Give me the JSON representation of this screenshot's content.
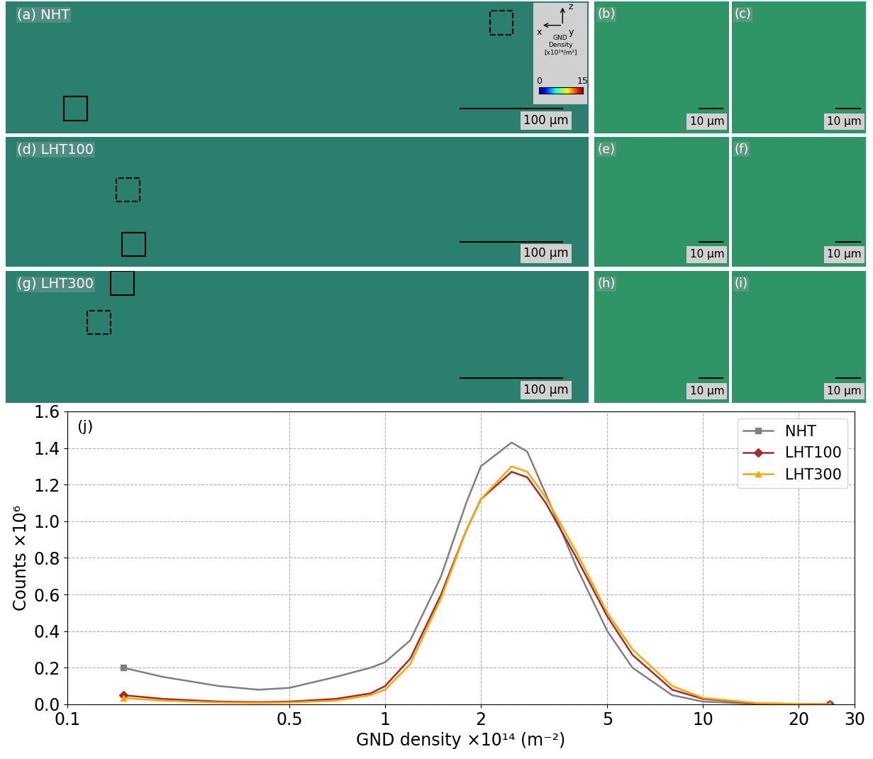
{
  "maps": [
    {
      "label": "(a) NHT",
      "scale_bar": "100 µm",
      "insets": [
        {
          "label": "(b)",
          "scale_bar": "10 µm"
        },
        {
          "label": "(c)",
          "scale_bar": "10 µm"
        }
      ]
    },
    {
      "label": "(d) LHT100",
      "scale_bar": "100 µm",
      "insets": [
        {
          "label": "(e)",
          "scale_bar": "10 µm"
        },
        {
          "label": "(f)",
          "scale_bar": "10 µm"
        }
      ]
    },
    {
      "label": "(g) LHT300",
      "scale_bar": "100 µm",
      "insets": [
        {
          "label": "(h)",
          "scale_bar": "10 µm"
        },
        {
          "label": "(i)",
          "scale_bar": "10 µm"
        }
      ]
    }
  ],
  "axes_triad": {
    "up": "z",
    "left": "x",
    "out": "y"
  },
  "colorbar": {
    "label": "GND\nDensity\n[x10¹⁴/m²]",
    "range": [
      0,
      15
    ],
    "ticks": [
      0,
      15
    ]
  },
  "chart_data": {
    "type": "line",
    "annotation": "(j)",
    "x_label": "GND density ×10¹⁴ (m⁻²)",
    "y_label": "Counts ×10⁶",
    "log": "x",
    "grid": true,
    "legend": "upper right",
    "x": [
      0.15,
      0.2,
      0.3,
      0.4,
      0.5,
      0.7,
      0.9,
      1.0,
      1.2,
      1.5,
      1.8,
      2.0,
      2.5,
      2.8,
      3.2,
      4.0,
      5.0,
      6.0,
      8.0,
      10.0,
      15.0,
      25.0
    ],
    "series": [
      {
        "name": "NHT",
        "color": "#808080",
        "marker": "square",
        "values": [
          0.2,
          0.15,
          0.1,
          0.08,
          0.09,
          0.15,
          0.2,
          0.23,
          0.35,
          0.7,
          1.1,
          1.3,
          1.43,
          1.38,
          1.15,
          0.75,
          0.4,
          0.2,
          0.05,
          0.015,
          0.002,
          0.0
        ]
      },
      {
        "name": "LHT100",
        "color": "#a52a2a",
        "marker": "diamond",
        "values": [
          0.05,
          0.03,
          0.015,
          0.012,
          0.015,
          0.03,
          0.06,
          0.1,
          0.25,
          0.6,
          0.95,
          1.12,
          1.27,
          1.24,
          1.1,
          0.8,
          0.48,
          0.27,
          0.08,
          0.03,
          0.005,
          0.0
        ]
      },
      {
        "name": "LHT300",
        "color": "#ffa500",
        "marker": "triangle",
        "values": [
          0.035,
          0.02,
          0.01,
          0.008,
          0.01,
          0.02,
          0.05,
          0.08,
          0.22,
          0.58,
          0.95,
          1.12,
          1.3,
          1.27,
          1.13,
          0.83,
          0.5,
          0.3,
          0.1,
          0.035,
          0.006,
          0.0
        ]
      }
    ],
    "xlim": [
      0.1,
      30
    ],
    "xticks": [
      0.1,
      0.5,
      1,
      2,
      5,
      10,
      20,
      30
    ],
    "ylim": [
      0,
      1.6
    ],
    "yticks": [
      {
        "value": 0,
        "label": "0.0"
      },
      {
        "value": 0.2,
        "label": "0.2"
      },
      {
        "value": 0.4,
        "label": "0.4"
      },
      {
        "value": 0.6,
        "label": "0.6"
      },
      {
        "value": 0.8,
        "label": "0.8"
      },
      {
        "value": 1.0,
        "label": "1.0"
      },
      {
        "value": 1.2,
        "label": "1.2"
      },
      {
        "value": 1.4,
        "label": "1.4"
      },
      {
        "value": 1.6,
        "label": "1.6"
      }
    ]
  }
}
